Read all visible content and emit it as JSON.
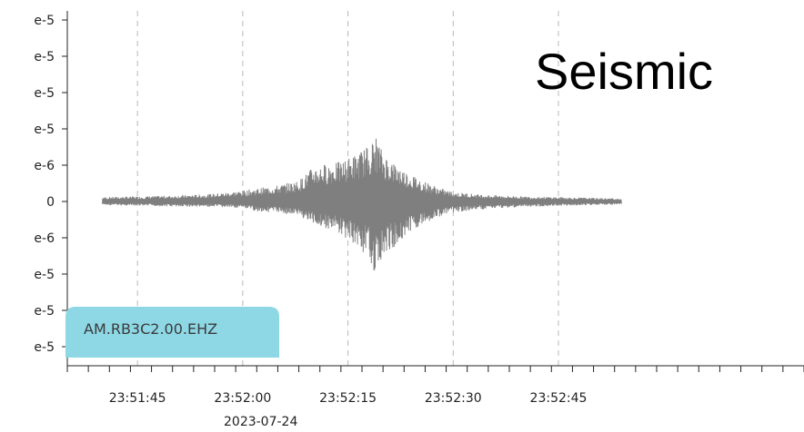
{
  "chart_data": {
    "type": "line",
    "title": "Seismic",
    "station_label": "AM.RB3C2.00.EHZ",
    "date_label": "2023-07-24",
    "xlabel": "",
    "ylabel": "",
    "x_range_seconds_of_day": [
      85895,
      86000
    ],
    "xtick_labels": [
      "23:51:45",
      "23:52:00",
      "23:52:15",
      "23:52:30",
      "23:52:45"
    ],
    "xtick_values": [
      "23:51:45",
      "23:52:00",
      "23:52:15",
      "23:52:30",
      "23:52:45"
    ],
    "ytick_labels": [
      "e-5",
      "e-5",
      "e-5",
      "e-5",
      "e-6",
      "0",
      "e-6",
      "e-5",
      "e-5",
      "e-5"
    ],
    "grid": "vertical dashed at major x ticks",
    "series": [
      {
        "color": "#7f7f7f",
        "x": [
          "23:51:40",
          "23:51:45",
          "23:51:50",
          "23:51:55",
          "23:52:00",
          "23:52:02",
          "23:52:05",
          "23:52:08",
          "23:52:10",
          "23:52:12",
          "23:52:14",
          "23:52:16",
          "23:52:18",
          "23:52:19",
          "23:52:20",
          "23:52:22",
          "23:52:24",
          "23:52:26",
          "23:52:28",
          "23:52:30",
          "23:52:35",
          "23:52:40",
          "23:52:45",
          "23:52:50",
          "23:52:54"
        ],
        "envelope_upper": [
          0.1,
          0.12,
          0.14,
          0.15,
          0.18,
          0.28,
          0.3,
          0.4,
          0.62,
          0.75,
          0.92,
          1.2,
          1.55,
          2.05,
          1.5,
          1.2,
          0.8,
          0.6,
          0.42,
          0.3,
          0.2,
          0.15,
          0.12,
          0.1,
          0.08
        ],
        "envelope_lower": [
          -0.12,
          -0.14,
          -0.16,
          -0.2,
          -0.3,
          -0.36,
          -0.45,
          -0.58,
          -0.95,
          -1.05,
          -1.1,
          -1.3,
          -1.55,
          -1.8,
          -1.35,
          -1.0,
          -0.75,
          -0.55,
          -0.38,
          -0.26,
          -0.18,
          -0.14,
          -0.12,
          -0.1,
          -0.08
        ]
      }
    ],
    "colors": {
      "trace": "#7f7f7f",
      "badge": "#8ed8e6",
      "grid": "#b8b8b8",
      "axis": "#222222"
    }
  }
}
